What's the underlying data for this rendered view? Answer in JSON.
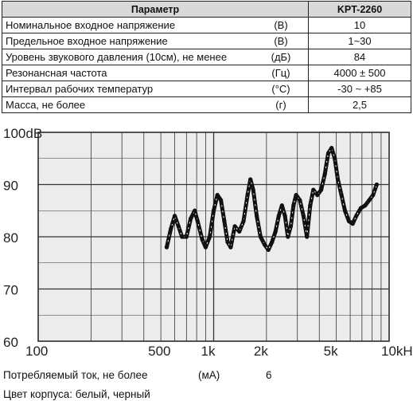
{
  "table": {
    "header": {
      "param": "Параметр",
      "model": "KPT-2260"
    },
    "rows": [
      {
        "name": "Номинальное входное напряжение",
        "unit": "(В)",
        "value": "10"
      },
      {
        "name": "Предельное входное напряжение",
        "unit": "(В)",
        "value": "1~30"
      },
      {
        "name": "Уровень звукового давления (10см), не менее",
        "unit": "(дБ)",
        "value": "84"
      },
      {
        "name": "Резонансная частота",
        "unit": "(Гц)",
        "value": "4000 ± 500"
      },
      {
        "name": "Интервал рабочих температур",
        "unit": "(°C)",
        "value": "-30 ~ +85"
      },
      {
        "name": "Масса, не более",
        "unit": "(г)",
        "value": "2,5"
      }
    ]
  },
  "chart_data": {
    "type": "line",
    "x_scale": "log",
    "xlim": [
      100,
      10000
    ],
    "ylim": [
      60,
      100
    ],
    "grid": true,
    "x_tick_labels": [
      {
        "value": 100,
        "label": "100"
      },
      {
        "value": 500,
        "label": "500"
      },
      {
        "value": 1000,
        "label": "1k"
      },
      {
        "value": 2000,
        "label": "2k"
      },
      {
        "value": 5000,
        "label": "5k"
      },
      {
        "value": 10000,
        "label": "10kHz"
      }
    ],
    "y_tick_labels": [
      {
        "value": 100,
        "label": "100dB"
      },
      {
        "value": 90,
        "label": "90"
      },
      {
        "value": 80,
        "label": "80"
      },
      {
        "value": 70,
        "label": "70"
      },
      {
        "value": 60,
        "label": "60"
      }
    ],
    "series": [
      {
        "x": [
          540,
          570,
          600,
          630,
          660,
          700,
          740,
          780,
          810,
          860,
          900,
          950,
          1000,
          1050,
          1100,
          1150,
          1200,
          1250,
          1320,
          1400,
          1480,
          1560,
          1620,
          1680,
          1760,
          1850,
          1950,
          2050,
          2150,
          2250,
          2350,
          2450,
          2550,
          2650,
          2750,
          2850,
          2950,
          3100,
          3250,
          3400,
          3550,
          3700,
          3900,
          4100,
          4300,
          4500,
          4700,
          4900,
          5100,
          5350,
          5600,
          5900,
          6200,
          6500,
          6900,
          7300,
          7700,
          8100,
          8500
        ],
        "y": [
          78,
          81.5,
          84,
          82,
          80,
          80,
          83.5,
          85,
          83,
          79.5,
          78,
          80,
          85,
          88,
          87,
          83,
          79,
          78,
          82,
          81,
          83,
          88,
          91,
          89,
          84,
          80,
          78.5,
          77.5,
          79,
          81,
          84,
          86,
          84,
          80,
          82,
          86,
          88,
          87,
          84,
          80,
          86,
          89,
          88,
          89,
          92,
          96,
          97,
          95,
          91,
          88,
          85,
          83,
          82.5,
          84,
          85.5,
          86,
          87,
          88,
          90
        ]
      }
    ]
  },
  "footer": {
    "current_label": "Потребляемый ток, не более",
    "current_unit": "(мА)",
    "current_value": "6",
    "color_line": "Цвет корпуса: белый, черный"
  }
}
